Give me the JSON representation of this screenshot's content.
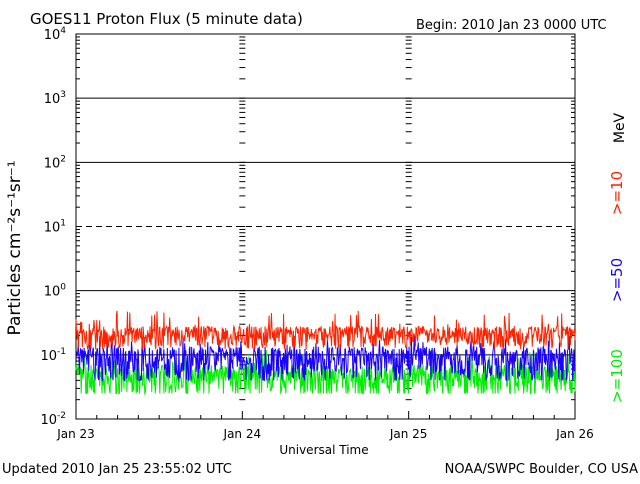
{
  "chart_data": {
    "type": "line",
    "title": "GOES11 Proton Flux (5 minute data)",
    "begin_label": "Begin: 2010 Jan 23 0000 UTC",
    "xlabel": "Universal Time",
    "ylabel": "Particles cm⁻²s⁻¹sr⁻¹",
    "yscale": "log",
    "ylim": [
      0.01,
      10000
    ],
    "y_ticks": [
      {
        "value": 10000,
        "base": "10",
        "exp": "4"
      },
      {
        "value": 1000,
        "base": "10",
        "exp": "3"
      },
      {
        "value": 100,
        "base": "10",
        "exp": "2"
      },
      {
        "value": 10,
        "base": "10",
        "exp": "1"
      },
      {
        "value": 1,
        "base": "10",
        "exp": "0"
      },
      {
        "value": 0.1,
        "base": "10",
        "exp": "-1"
      },
      {
        "value": 0.01,
        "base": "10",
        "exp": "-2"
      }
    ],
    "x_ticks": [
      "Jan 23",
      "Jan 24",
      "Jan 25",
      "Jan 26"
    ],
    "xlim_days": [
      0,
      3
    ],
    "grid": true,
    "unit_label": "MeV",
    "series": [
      {
        "name": ">=10",
        "color": "#ff2200",
        "base": 0.2,
        "spread": 0.08,
        "min": 0.12,
        "max": 0.5
      },
      {
        "name": ">=50",
        "color": "#1a00ff",
        "base": 0.085,
        "spread": 0.05,
        "min": 0.04,
        "max": 0.2
      },
      {
        "name": ">=100",
        "color": "#00ee00",
        "base": 0.045,
        "spread": 0.025,
        "min": 0.025,
        "max": 0.12
      }
    ]
  },
  "footer": {
    "updated": "Updated 2010 Jan 25 23:55:02 UTC",
    "credit": "NOAA/SWPC Boulder, CO USA"
  }
}
